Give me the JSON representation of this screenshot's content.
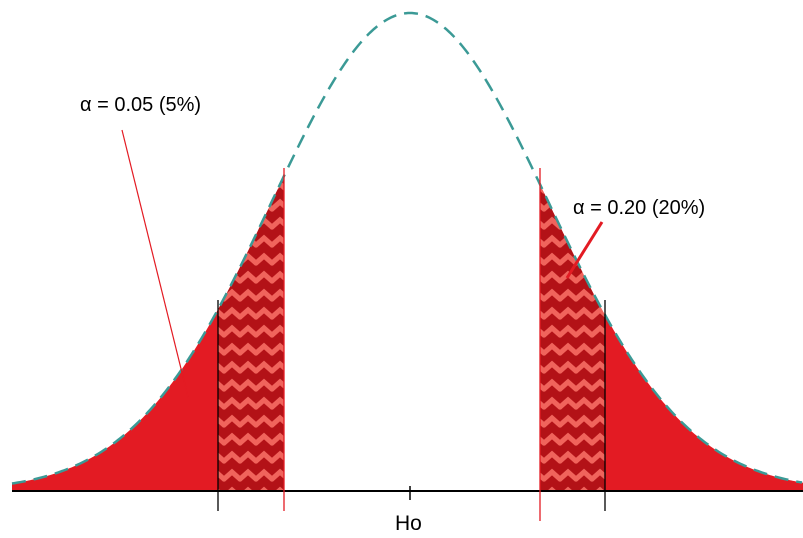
{
  "annotations": {
    "alpha_left": "α = 0.05 (5%)",
    "alpha_right": "α = 0.20 (20%)"
  },
  "axis": {
    "center_label": "Ho"
  },
  "colors": {
    "curve": "#3b9a96",
    "outer_fill": "#e31b23",
    "inner_fill": "#b31217",
    "chevron": "#f0645c",
    "red_line": "#e31b23",
    "black_line": "#000000",
    "axis": "#000000"
  }
}
